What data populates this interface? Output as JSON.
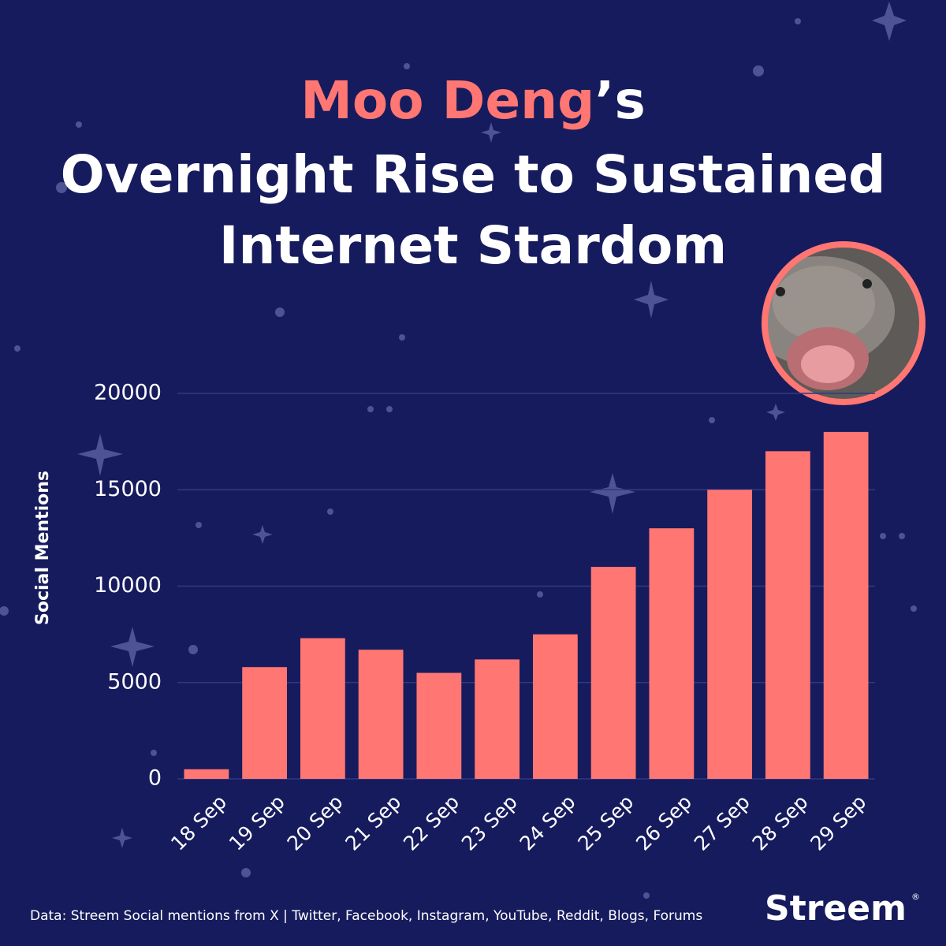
{
  "chart_data": {
    "type": "bar",
    "title_parts": [
      "Moo Deng",
      "’s",
      "Overnight Rise to Sustained",
      "Internet Stardom"
    ],
    "y_label": "Social Mentions",
    "categories": [
      "18 Sep",
      "19 Sep",
      "20 Sep",
      "21 Sep",
      "22 Sep",
      "23 Sep",
      "24 Sep",
      "25 Sep",
      "26 Sep",
      "27 Sep",
      "28 Sep",
      "29 Sep"
    ],
    "values": [
      500,
      5800,
      7300,
      6700,
      5500,
      6200,
      7500,
      11000,
      13000,
      15000,
      17000,
      18000
    ],
    "color": "#ff7672",
    "ylim": [
      0,
      20000
    ],
    "yticks": [
      0,
      5000,
      10000,
      15000,
      20000
    ],
    "grid": true,
    "source": "Data: Streem Social mentions from X | Twitter, Facebook, Instagram, YouTube, Reddit, Blogs, Forums",
    "brand": "Streem",
    "brand_mark": "®"
  }
}
